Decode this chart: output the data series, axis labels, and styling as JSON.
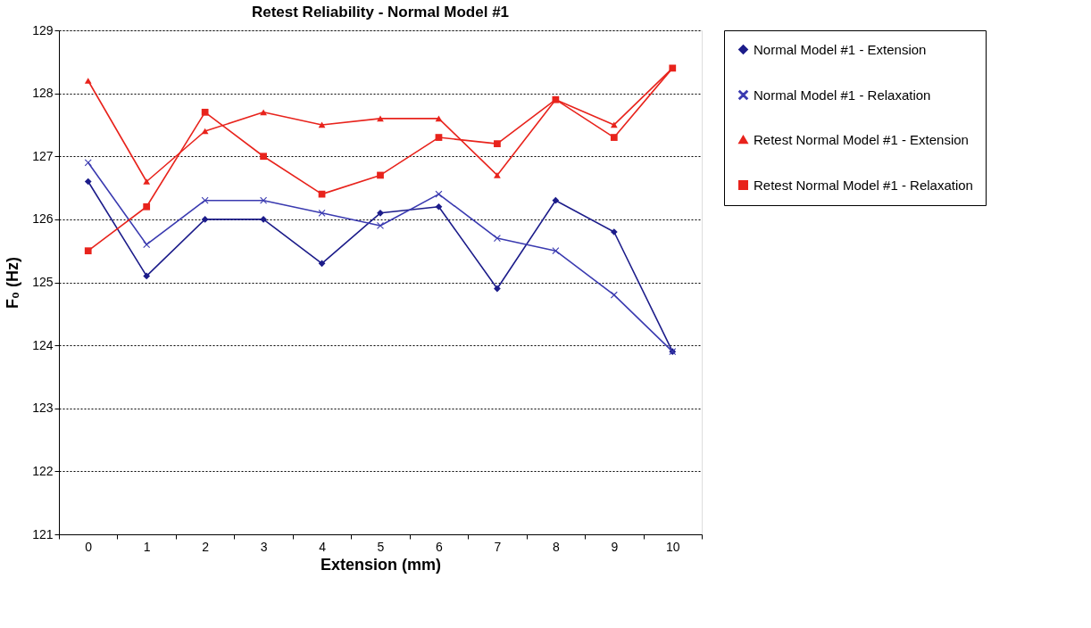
{
  "chart_data": {
    "type": "line",
    "title": "Retest Reliability - Normal Model #1",
    "xlabel": "Extension (mm)",
    "ylabel": "F₀ (Hz)",
    "categories": [
      "0",
      "1",
      "2",
      "3",
      "4",
      "5",
      "6",
      "7",
      "8",
      "9",
      "10"
    ],
    "series": [
      {
        "name": "Normal Model #1 - Extension",
        "color": "#1c1c8a",
        "marker": "diamond",
        "values": [
          126.6,
          125.1,
          126.0,
          126.0,
          125.3,
          126.1,
          126.2,
          124.9,
          126.3,
          125.8,
          123.9
        ]
      },
      {
        "name": "Normal Model #1 - Relaxation",
        "color": "#3a3ab0",
        "marker": "cross",
        "values": [
          126.9,
          125.6,
          126.3,
          126.3,
          126.1,
          125.9,
          126.4,
          125.7,
          125.5,
          124.8,
          123.9
        ]
      },
      {
        "name": "Retest Normal Model #1 - Extension",
        "color": "#e8231c",
        "marker": "triangle",
        "values": [
          128.2,
          126.6,
          127.4,
          127.7,
          127.5,
          127.6,
          127.6,
          126.7,
          127.9,
          127.5,
          128.4
        ]
      },
      {
        "name": "Retest Normal Model #1 - Relaxation",
        "color": "#e8231c",
        "marker": "square",
        "values": [
          125.5,
          126.2,
          127.7,
          127.0,
          126.4,
          126.7,
          127.3,
          127.2,
          127.9,
          127.3,
          128.4
        ]
      }
    ],
    "ylim": [
      121,
      129
    ],
    "yticks": [
      121,
      122,
      123,
      124,
      125,
      126,
      127,
      128,
      129
    ],
    "grid": "y",
    "legend": "right"
  }
}
